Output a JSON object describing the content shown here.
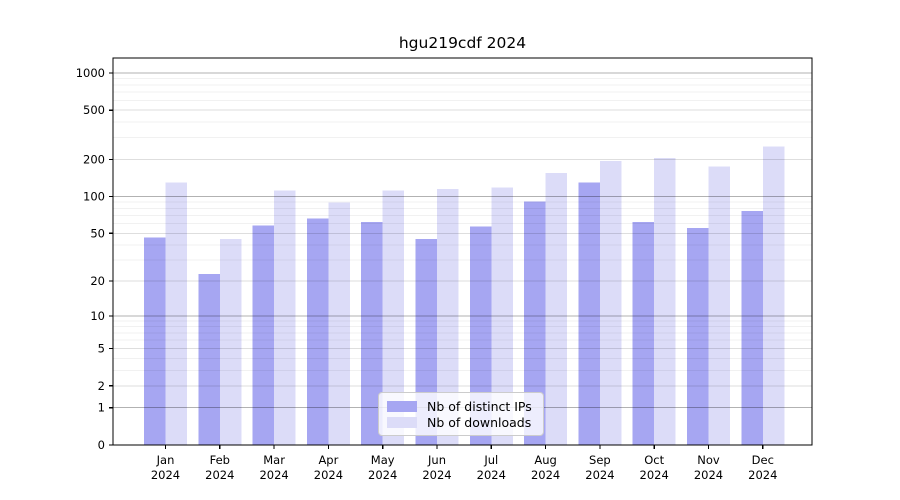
{
  "title": "hgu219cdf 2024",
  "chart_data": {
    "type": "bar",
    "title": "hgu219cdf 2024",
    "xlabel": "",
    "ylabel": "",
    "y_scale": "log1p",
    "ylim": [
      0,
      1320
    ],
    "grid": true,
    "legend_position": "bottom-center",
    "categories": [
      "Jan 2024",
      "Feb 2024",
      "Mar 2024",
      "Apr 2024",
      "May 2024",
      "Jun 2024",
      "Jul 2024",
      "Aug 2024",
      "Sep 2024",
      "Oct 2024",
      "Nov 2024",
      "Dec 2024"
    ],
    "y_ticks": [
      0,
      1,
      2,
      5,
      10,
      20,
      50,
      100,
      200,
      500,
      1000
    ],
    "y_minor_ticks": [
      3,
      4,
      6,
      7,
      8,
      9,
      30,
      40,
      60,
      70,
      80,
      90,
      300,
      400,
      600,
      700,
      800,
      900
    ],
    "series": [
      {
        "name": "Nb of distinct IPs",
        "color": "#a6a6f2",
        "values": [
          46,
          23,
          58,
          66,
          62,
          45,
          57,
          91,
          130,
          62,
          55,
          76
        ]
      },
      {
        "name": "Nb of downloads",
        "color": "#dcdcf8",
        "values": [
          130,
          45,
          112,
          89,
          112,
          115,
          118,
          155,
          195,
          206,
          176,
          255
        ]
      }
    ],
    "colors": {
      "axis": "#000000",
      "grid_major": "#b3b3b3",
      "grid_labeled": "#dedede",
      "grid_minor": "#f0f0f0"
    }
  }
}
